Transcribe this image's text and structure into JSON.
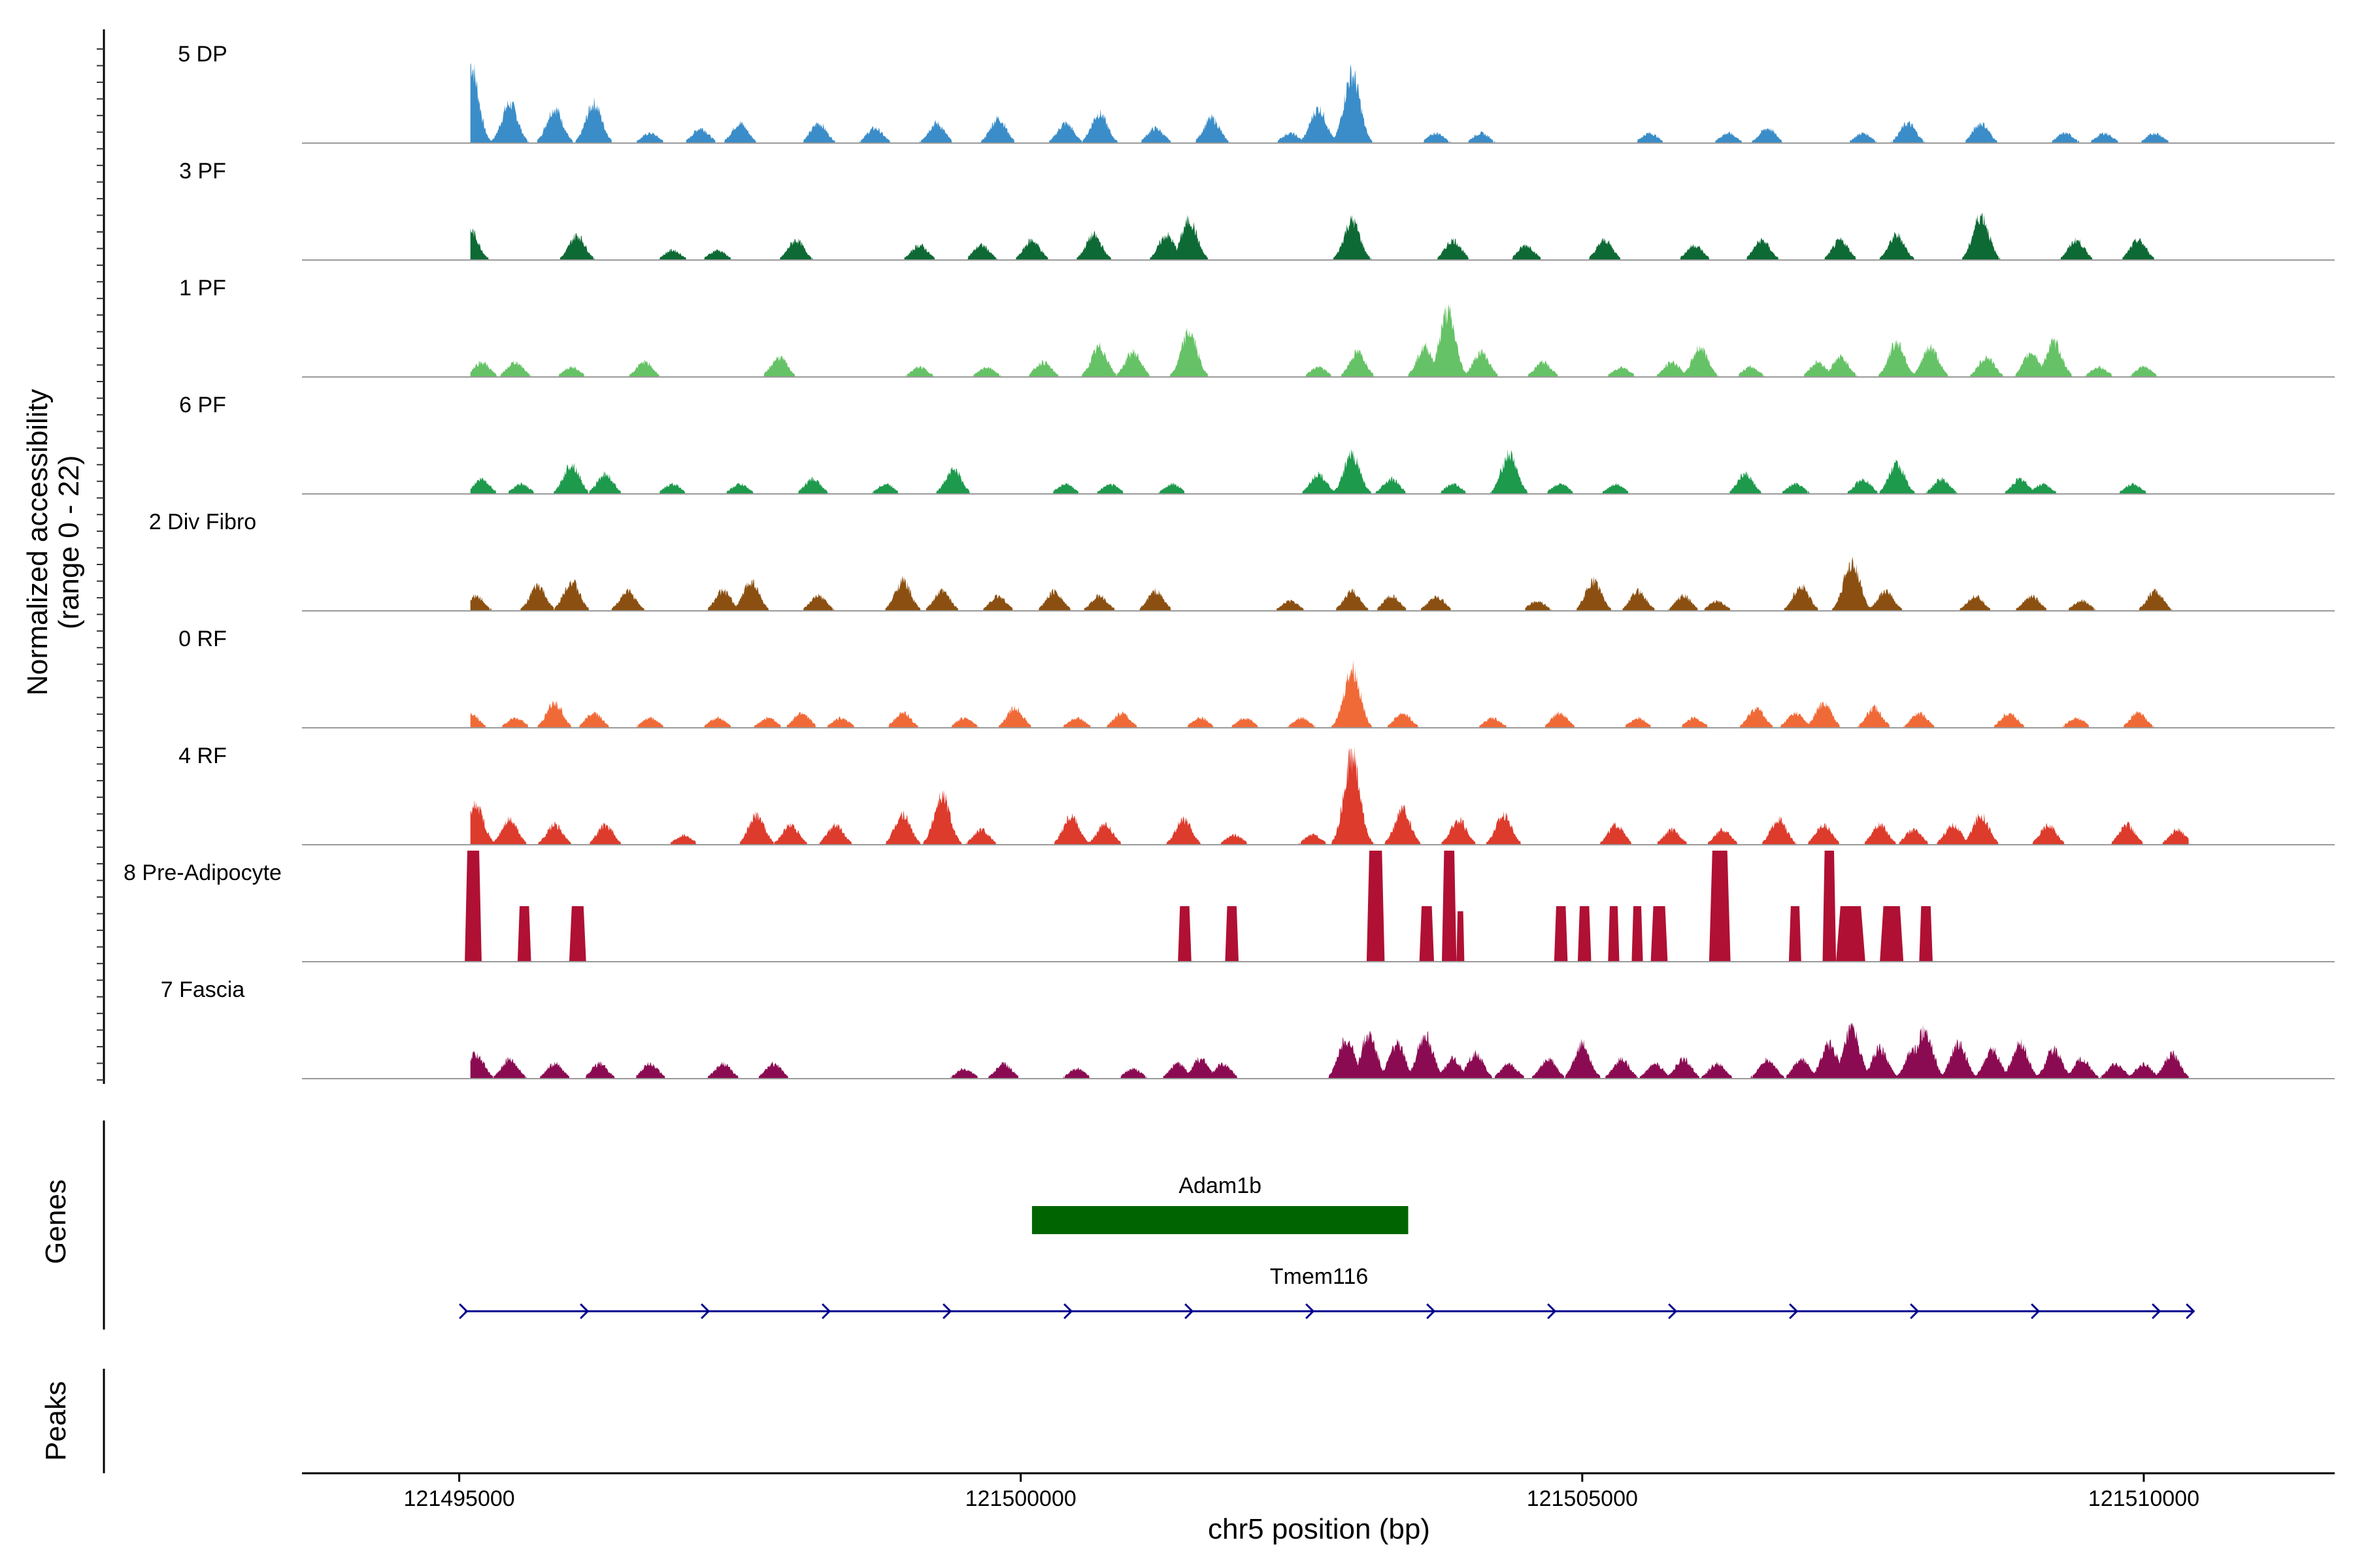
{
  "chart_data": {
    "type": "area",
    "title": "",
    "xlabel": "chr5 position (bp)",
    "ylabel": "Normalized accessibility",
    "ylabel_sub": "(range 0 - 22)",
    "ylim": [
      0,
      22
    ],
    "xlim": [
      121493600,
      121511700
    ],
    "x_ticks": [
      121495000,
      121500000,
      121505000,
      121510000
    ],
    "x_tick_labels": [
      "121495000",
      "121500000",
      "121505000",
      "121510000"
    ],
    "data_start": 121495100,
    "data_end": 121510400,
    "tracks": [
      {
        "name": "5 DP",
        "color": "#3A8DC8",
        "peaks": [
          [
            121495100,
            16
          ],
          [
            121495450,
            8
          ],
          [
            121495850,
            7
          ],
          [
            121496200,
            8
          ],
          [
            121496700,
            2
          ],
          [
            121497150,
            3
          ],
          [
            121497500,
            4
          ],
          [
            121498200,
            4
          ],
          [
            121498700,
            3
          ],
          [
            121499250,
            4
          ],
          [
            121499800,
            5
          ],
          [
            121500400,
            4
          ],
          [
            121500700,
            6
          ],
          [
            121501200,
            3
          ],
          [
            121501700,
            5
          ],
          [
            121502400,
            2
          ],
          [
            121502650,
            7
          ],
          [
            121502950,
            14
          ],
          [
            121503700,
            2
          ],
          [
            121504100,
            2
          ],
          [
            121505600,
            2
          ],
          [
            121506300,
            2
          ],
          [
            121506650,
            3
          ],
          [
            121507500,
            2
          ],
          [
            121507900,
            4
          ],
          [
            121508550,
            4
          ],
          [
            121509300,
            2
          ],
          [
            121509650,
            2
          ],
          [
            121510100,
            2
          ]
        ]
      },
      {
        "name": "3 PF",
        "color": "#0E6A35",
        "peaks": [
          [
            121495100,
            6
          ],
          [
            121496050,
            5
          ],
          [
            121496900,
            2
          ],
          [
            121497300,
            2
          ],
          [
            121498000,
            4
          ],
          [
            121499100,
            3
          ],
          [
            121499650,
            3
          ],
          [
            121500100,
            4
          ],
          [
            121500650,
            5
          ],
          [
            121501300,
            5
          ],
          [
            121501500,
            8
          ],
          [
            121502950,
            8
          ],
          [
            121503850,
            4
          ],
          [
            121504500,
            3
          ],
          [
            121505200,
            4
          ],
          [
            121506000,
            3
          ],
          [
            121506600,
            4
          ],
          [
            121507300,
            4
          ],
          [
            121507800,
            5
          ],
          [
            121508550,
            9
          ],
          [
            121509400,
            4
          ],
          [
            121509950,
            4
          ]
        ]
      },
      {
        "name": "1 PF",
        "color": "#66C266",
        "peaks": [
          [
            121495200,
            3
          ],
          [
            121495500,
            3
          ],
          [
            121496000,
            2
          ],
          [
            121496650,
            3
          ],
          [
            121497850,
            4
          ],
          [
            121499100,
            2
          ],
          [
            121499700,
            2
          ],
          [
            121500200,
            3
          ],
          [
            121500700,
            6
          ],
          [
            121501000,
            5
          ],
          [
            121501500,
            9
          ],
          [
            121502650,
            2
          ],
          [
            121503000,
            5
          ],
          [
            121503600,
            6
          ],
          [
            121503800,
            13
          ],
          [
            121504100,
            5
          ],
          [
            121504650,
            3
          ],
          [
            121505350,
            2
          ],
          [
            121505800,
            3
          ],
          [
            121506050,
            6
          ],
          [
            121506500,
            2
          ],
          [
            121507100,
            3
          ],
          [
            121507300,
            4
          ],
          [
            121507800,
            7
          ],
          [
            121508100,
            6
          ],
          [
            121508600,
            4
          ],
          [
            121509000,
            5
          ],
          [
            121509200,
            7
          ],
          [
            121509600,
            2
          ],
          [
            121510000,
            2
          ]
        ]
      },
      {
        "name": "6 PF",
        "color": "#1D9A4C",
        "peaks": [
          [
            121495200,
            3
          ],
          [
            121495550,
            2
          ],
          [
            121496000,
            6
          ],
          [
            121496300,
            4
          ],
          [
            121496900,
            2
          ],
          [
            121497500,
            2
          ],
          [
            121498150,
            3
          ],
          [
            121498800,
            2
          ],
          [
            121499400,
            5
          ],
          [
            121500400,
            2
          ],
          [
            121500800,
            2
          ],
          [
            121501350,
            2
          ],
          [
            121502650,
            4
          ],
          [
            121502950,
            8
          ],
          [
            121503300,
            3
          ],
          [
            121503850,
            2
          ],
          [
            121504350,
            8
          ],
          [
            121504800,
            2
          ],
          [
            121505300,
            2
          ],
          [
            121506450,
            4
          ],
          [
            121506900,
            2
          ],
          [
            121507500,
            3
          ],
          [
            121507800,
            6
          ],
          [
            121508200,
            3
          ],
          [
            121508900,
            3
          ],
          [
            121509100,
            2
          ],
          [
            121509900,
            2
          ]
        ]
      },
      {
        "name": "2 Div Fibro",
        "color": "#8B5011",
        "peaks": [
          [
            121495150,
            3
          ],
          [
            121495700,
            5
          ],
          [
            121496000,
            6
          ],
          [
            121496500,
            4
          ],
          [
            121497350,
            4
          ],
          [
            121497600,
            6
          ],
          [
            121498200,
            3
          ],
          [
            121498950,
            6
          ],
          [
            121499300,
            4
          ],
          [
            121499800,
            3
          ],
          [
            121500300,
            4
          ],
          [
            121500700,
            3
          ],
          [
            121501200,
            4
          ],
          [
            121502400,
            2
          ],
          [
            121502950,
            4
          ],
          [
            121503300,
            3
          ],
          [
            121503700,
            3
          ],
          [
            121504600,
            2
          ],
          [
            121505100,
            6
          ],
          [
            121505500,
            4
          ],
          [
            121505900,
            3
          ],
          [
            121506200,
            2
          ],
          [
            121506950,
            5
          ],
          [
            121507400,
            10
          ],
          [
            121507700,
            4
          ],
          [
            121508500,
            3
          ],
          [
            121509000,
            3
          ],
          [
            121509450,
            2
          ],
          [
            121510100,
            4
          ]
        ]
      },
      {
        "name": "0 RF",
        "color": "#F06A38",
        "peaks": [
          [
            121495100,
            3
          ],
          [
            121495500,
            2
          ],
          [
            121495850,
            5
          ],
          [
            121496200,
            3
          ],
          [
            121496700,
            2
          ],
          [
            121497300,
            2
          ],
          [
            121497750,
            2
          ],
          [
            121498050,
            3
          ],
          [
            121498400,
            2
          ],
          [
            121498950,
            3
          ],
          [
            121499500,
            2
          ],
          [
            121499950,
            4
          ],
          [
            121500500,
            2
          ],
          [
            121500900,
            3
          ],
          [
            121501600,
            2
          ],
          [
            121502000,
            2
          ],
          [
            121502500,
            2
          ],
          [
            121502950,
            12
          ],
          [
            121503400,
            3
          ],
          [
            121504200,
            2
          ],
          [
            121504800,
            3
          ],
          [
            121505500,
            2
          ],
          [
            121506000,
            2
          ],
          [
            121506550,
            4
          ],
          [
            121506900,
            3
          ],
          [
            121507150,
            5
          ],
          [
            121507600,
            4
          ],
          [
            121508000,
            3
          ],
          [
            121508800,
            3
          ],
          [
            121509400,
            2
          ],
          [
            121509950,
            3
          ]
        ]
      },
      {
        "name": "4 RF",
        "color": "#DD3B2C",
        "peaks": [
          [
            121495150,
            8
          ],
          [
            121495450,
            5
          ],
          [
            121495850,
            4
          ],
          [
            121496300,
            4
          ],
          [
            121497000,
            2
          ],
          [
            121497650,
            6
          ],
          [
            121497950,
            4
          ],
          [
            121498350,
            4
          ],
          [
            121498950,
            6
          ],
          [
            121499300,
            10
          ],
          [
            121499650,
            3
          ],
          [
            121500450,
            6
          ],
          [
            121500750,
            4
          ],
          [
            121501450,
            5
          ],
          [
            121501900,
            2
          ],
          [
            121502600,
            2
          ],
          [
            121502950,
            18
          ],
          [
            121503400,
            7
          ],
          [
            121503900,
            5
          ],
          [
            121504300,
            6
          ],
          [
            121505300,
            4
          ],
          [
            121505800,
            3
          ],
          [
            121506250,
            3
          ],
          [
            121506750,
            5
          ],
          [
            121507150,
            4
          ],
          [
            121507650,
            4
          ],
          [
            121507950,
            3
          ],
          [
            121508300,
            4
          ],
          [
            121508550,
            6
          ],
          [
            121509150,
            4
          ],
          [
            121509850,
            4
          ],
          [
            121510300,
            3
          ]
        ]
      },
      {
        "name": "8 Pre-Adipocyte",
        "color": "#B01033",
        "mode": "box",
        "peaks": [
          [
            121495050,
            121495200,
            22
          ],
          [
            121495520,
            121495640,
            11
          ],
          [
            121495980,
            121496130,
            11
          ],
          [
            121501400,
            121501520,
            11
          ],
          [
            121501820,
            121501940,
            11
          ],
          [
            121503080,
            121503240,
            22
          ],
          [
            121503550,
            121503680,
            11
          ],
          [
            121503750,
            121503880,
            22
          ],
          [
            121503880,
            121503950,
            10
          ],
          [
            121504750,
            121504870,
            11
          ],
          [
            121504960,
            121505080,
            11
          ],
          [
            121505230,
            121505330,
            11
          ],
          [
            121505440,
            121505540,
            11
          ],
          [
            121505610,
            121505760,
            11
          ],
          [
            121506130,
            121506320,
            22
          ],
          [
            121506840,
            121506950,
            11
          ],
          [
            121507140,
            121507260,
            22
          ],
          [
            121507260,
            121507520,
            11
          ],
          [
            121507650,
            121507860,
            11
          ],
          [
            121508000,
            121508120,
            11
          ]
        ]
      },
      {
        "name": "7 Fascia",
        "color": "#8B0B52",
        "peaks": [
          [
            121495150,
            5
          ],
          [
            121495450,
            4
          ],
          [
            121495850,
            3
          ],
          [
            121496250,
            3
          ],
          [
            121496700,
            3
          ],
          [
            121497350,
            3
          ],
          [
            121497800,
            3
          ],
          [
            121499500,
            2
          ],
          [
            121499850,
            3
          ],
          [
            121500500,
            2
          ],
          [
            121501000,
            2
          ],
          [
            121501400,
            3
          ],
          [
            121501600,
            4
          ],
          [
            121501800,
            3
          ],
          [
            121502900,
            8
          ],
          [
            121503100,
            9
          ],
          [
            121503350,
            7
          ],
          [
            121503600,
            9
          ],
          [
            121503850,
            4
          ],
          [
            121504050,
            5
          ],
          [
            121504350,
            3
          ],
          [
            121504700,
            4
          ],
          [
            121505000,
            7
          ],
          [
            121505350,
            4
          ],
          [
            121505650,
            3
          ],
          [
            121505900,
            4
          ],
          [
            121506200,
            3
          ],
          [
            121506650,
            4
          ],
          [
            121506950,
            4
          ],
          [
            121507200,
            7
          ],
          [
            121507400,
            10
          ],
          [
            121507650,
            6
          ],
          [
            121507950,
            6
          ],
          [
            121508050,
            10
          ],
          [
            121508350,
            7
          ],
          [
            121508650,
            6
          ],
          [
            121508900,
            7
          ],
          [
            121509200,
            6
          ],
          [
            121509450,
            4
          ],
          [
            121509750,
            3
          ],
          [
            121510000,
            3
          ],
          [
            121510250,
            5
          ]
        ]
      }
    ],
    "genes_panel_label": "Genes",
    "peaks_panel_label": "Peaks",
    "genes": [
      {
        "name": "Adam1b",
        "start": 121500100,
        "end": 121503450,
        "color": "#006400"
      },
      {
        "name": "Tmem116",
        "start": 121495050,
        "end": 121510450,
        "color": "#00008B",
        "strand": "+"
      }
    ]
  }
}
